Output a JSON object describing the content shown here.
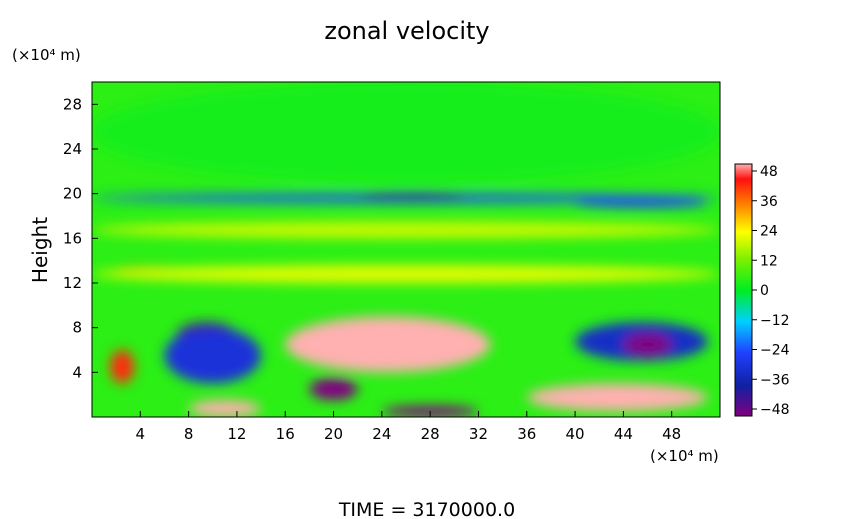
{
  "chart_data": {
    "type": "heatmap",
    "title": "zonal velocity",
    "xlabel": "",
    "ylabel": "Height",
    "x_unit": "(×10⁴ m)",
    "y_unit": "(×10⁴ m)",
    "footer": "TIME = 3170000.0",
    "xlim": [
      0,
      52
    ],
    "ylim": [
      0,
      30
    ],
    "x_ticks": [
      "4",
      "8",
      "12",
      "16",
      "20",
      "24",
      "28",
      "32",
      "36",
      "40",
      "44",
      "48"
    ],
    "y_ticks": [
      "4",
      "8",
      "12",
      "16",
      "20",
      "24",
      "28"
    ],
    "colorbar": {
      "range": [
        -48,
        48
      ],
      "ticks": [
        "48",
        "36",
        "24",
        "12",
        "0",
        "−12",
        "−24",
        "−36",
        "−48"
      ]
    },
    "features": [
      {
        "x": [
          0,
          52
        ],
        "y": [
          21,
          30
        ],
        "value": 2
      },
      {
        "x": [
          0,
          52
        ],
        "y": [
          19.2,
          20
        ],
        "value": -28
      },
      {
        "x": [
          22,
          31
        ],
        "y": [
          19.6,
          20.1
        ],
        "value": -42
      },
      {
        "x": [
          40,
          51
        ],
        "y": [
          18.8,
          19.6
        ],
        "value": -30
      },
      {
        "x": [
          0,
          52
        ],
        "y": [
          16,
          17.5
        ],
        "value": 18
      },
      {
        "x": [
          2,
          8
        ],
        "y": [
          12.8,
          13.4
        ],
        "value": 32
      },
      {
        "x": [
          0,
          52
        ],
        "y": [
          12,
          13.6
        ],
        "value": 20
      },
      {
        "x": [
          7,
          12
        ],
        "y": [
          6,
          8.5
        ],
        "value": -44
      },
      {
        "x": [
          6,
          14
        ],
        "y": [
          3,
          8
        ],
        "value": -34
      },
      {
        "x": [
          16,
          33
        ],
        "y": [
          4,
          9
        ],
        "value": 48
      },
      {
        "x": [
          18,
          22
        ],
        "y": [
          1.5,
          3.5
        ],
        "value": -48
      },
      {
        "x": [
          1.5,
          3.5
        ],
        "y": [
          3,
          6
        ],
        "value": 40
      },
      {
        "x": [
          8,
          14
        ],
        "y": [
          0,
          1.5
        ],
        "value": 48
      },
      {
        "x": [
          24,
          32
        ],
        "y": [
          0,
          1
        ],
        "value": -48
      },
      {
        "x": [
          36,
          51
        ],
        "y": [
          0.5,
          3
        ],
        "value": 48
      },
      {
        "x": [
          40,
          51
        ],
        "y": [
          5,
          8.5
        ],
        "value": -36
      },
      {
        "x": [
          44,
          48
        ],
        "y": [
          5.5,
          7.5
        ],
        "value": -48
      }
    ]
  }
}
